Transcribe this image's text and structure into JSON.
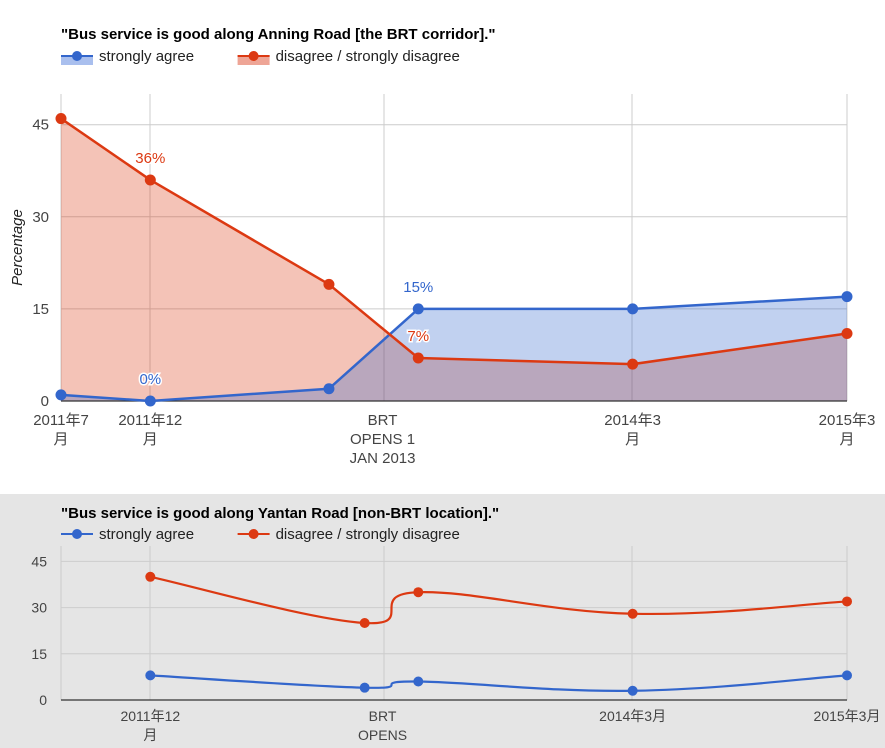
{
  "colors": {
    "agree": "#3366cc",
    "disagree": "#dc3912",
    "agree_fill": "#a9bfee",
    "disagree_fill": "#eea596",
    "panel2_bg": "#e5e5e5"
  },
  "chart_data": [
    {
      "type": "area",
      "title": "\"Bus service is good along Anning Road [the BRT corridor].\"",
      "ylabel": "Percentage",
      "ylim": [
        0,
        50
      ],
      "yticks": [
        0,
        15,
        30,
        45
      ],
      "grid": true,
      "legend_position": "top-left",
      "x_ticks": [
        {
          "x": 0,
          "lines": [
            "2011年7",
            "月"
          ]
        },
        {
          "x": 5,
          "lines": [
            "2011年12",
            "月"
          ]
        },
        {
          "x": 18,
          "lines": [
            "BRT",
            "OPENS 1",
            "JAN 2013"
          ]
        },
        {
          "x": 32,
          "lines": [
            "2014年3",
            "月"
          ]
        },
        {
          "x": 44,
          "lines": [
            "2015年3",
            "月"
          ]
        }
      ],
      "xlim": [
        0,
        44
      ],
      "series": [
        {
          "name": "strongly agree",
          "color_key": "agree",
          "points": [
            {
              "x": 0,
              "y": 1
            },
            {
              "x": 5,
              "y": 0,
              "label": "0%"
            },
            {
              "x": 15,
              "y": 2
            },
            {
              "x": 20,
              "y": 15,
              "label": "15%"
            },
            {
              "x": 32,
              "y": 15
            },
            {
              "x": 44,
              "y": 17
            }
          ]
        },
        {
          "name": "disagree / strongly disagree",
          "color_key": "disagree",
          "points": [
            {
              "x": 0,
              "y": 46
            },
            {
              "x": 5,
              "y": 36,
              "label": "36%"
            },
            {
              "x": 15,
              "y": 19
            },
            {
              "x": 20,
              "y": 7,
              "label": "7%"
            },
            {
              "x": 32,
              "y": 6
            },
            {
              "x": 44,
              "y": 11
            }
          ]
        }
      ]
    },
    {
      "type": "line",
      "title": "\"Bus service is good along Yantan Road [non-BRT location].\"",
      "ylim": [
        0,
        50
      ],
      "yticks": [
        0,
        15,
        30,
        45
      ],
      "grid": true,
      "smooth": true,
      "legend_position": "top-left",
      "x_ticks": [
        {
          "x": 5,
          "lines": [
            "2011年12",
            "月"
          ]
        },
        {
          "x": 18,
          "lines": [
            "BRT",
            "OPENS"
          ]
        },
        {
          "x": 32,
          "lines": [
            "2014年3月"
          ]
        },
        {
          "x": 44,
          "lines": [
            "2015年3月"
          ]
        }
      ],
      "xlim": [
        0,
        44
      ],
      "series": [
        {
          "name": "strongly agree",
          "color_key": "agree",
          "points": [
            {
              "x": 5,
              "y": 8
            },
            {
              "x": 17,
              "y": 4
            },
            {
              "x": 20,
              "y": 6
            },
            {
              "x": 32,
              "y": 3
            },
            {
              "x": 44,
              "y": 8
            }
          ]
        },
        {
          "name": "disagree / strongly disagree",
          "color_key": "disagree",
          "points": [
            {
              "x": 5,
              "y": 40
            },
            {
              "x": 17,
              "y": 25
            },
            {
              "x": 20,
              "y": 35
            },
            {
              "x": 32,
              "y": 28
            },
            {
              "x": 44,
              "y": 32
            }
          ]
        }
      ]
    }
  ]
}
